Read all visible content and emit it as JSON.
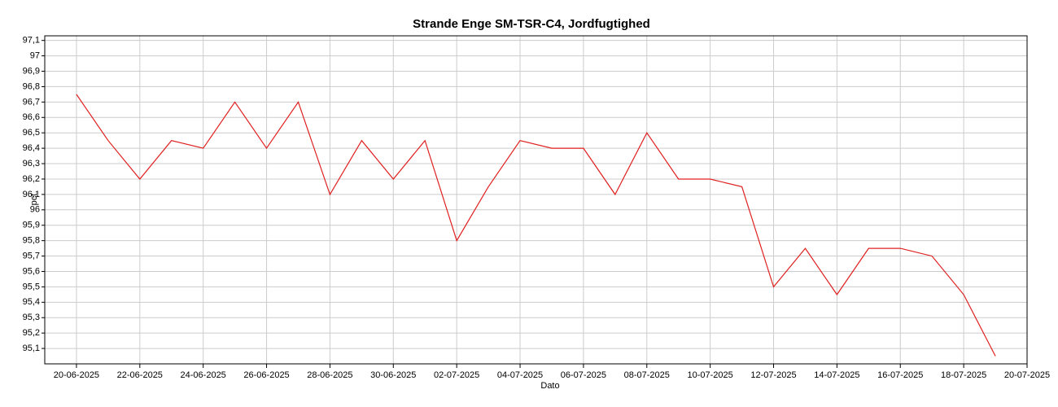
{
  "chart_data": {
    "type": "line",
    "title": "Strande Enge SM-TSR-C4, Jordfugtighed",
    "x_label": "Dato",
    "y_label": "pct",
    "x": [
      "2025-06-20",
      "2025-06-21",
      "2025-06-22",
      "2025-06-23",
      "2025-06-24",
      "2025-06-25",
      "2025-06-26",
      "2025-06-27",
      "2025-06-28",
      "2025-06-29",
      "2025-06-30",
      "2025-07-01",
      "2025-07-02",
      "2025-07-03",
      "2025-07-04",
      "2025-07-05",
      "2025-07-06",
      "2025-07-07",
      "2025-07-08",
      "2025-07-09",
      "2025-07-10",
      "2025-07-11",
      "2025-07-12",
      "2025-07-13",
      "2025-07-14",
      "2025-07-15",
      "2025-07-16",
      "2025-07-17",
      "2025-07-18",
      "2025-07-19"
    ],
    "series": [
      {
        "name": "Jordfugtighed",
        "color": "#e02020",
        "values": [
          96.75,
          96.45,
          96.2,
          96.45,
          96.4,
          96.7,
          96.4,
          96.7,
          96.1,
          96.45,
          96.2,
          96.45,
          95.8,
          96.15,
          96.45,
          96.4,
          96.4,
          96.1,
          96.5,
          96.2,
          96.2,
          96.15,
          95.5,
          95.75,
          95.45,
          95.75,
          95.75,
          95.7,
          95.45,
          95.05
        ]
      }
    ],
    "xlim": [
      "2025-06-19",
      "2025-07-20"
    ],
    "xticks": [
      {
        "value": "2025-06-20",
        "label": "20-06-2025"
      },
      {
        "value": "2025-06-22",
        "label": "22-06-2025"
      },
      {
        "value": "2025-06-24",
        "label": "24-06-2025"
      },
      {
        "value": "2025-06-26",
        "label": "26-06-2025"
      },
      {
        "value": "2025-06-28",
        "label": "28-06-2025"
      },
      {
        "value": "2025-06-30",
        "label": "30-06-2025"
      },
      {
        "value": "2025-07-02",
        "label": "02-07-2025"
      },
      {
        "value": "2025-07-04",
        "label": "04-07-2025"
      },
      {
        "value": "2025-07-06",
        "label": "06-07-2025"
      },
      {
        "value": "2025-07-08",
        "label": "08-07-2025"
      },
      {
        "value": "2025-07-10",
        "label": "10-07-2025"
      },
      {
        "value": "2025-07-12",
        "label": "12-07-2025"
      },
      {
        "value": "2025-07-14",
        "label": "14-07-2025"
      },
      {
        "value": "2025-07-16",
        "label": "16-07-2025"
      },
      {
        "value": "2025-07-18",
        "label": "18-07-2025"
      },
      {
        "value": "2025-07-20",
        "label": "20-07-2025"
      }
    ],
    "ylim": [
      95.0,
      97.13
    ],
    "yticks": [
      {
        "value": 95.1,
        "label": "95,1"
      },
      {
        "value": 95.2,
        "label": "95,2"
      },
      {
        "value": 95.3,
        "label": "95,3"
      },
      {
        "value": 95.4,
        "label": "95,4"
      },
      {
        "value": 95.5,
        "label": "95,5"
      },
      {
        "value": 95.6,
        "label": "95,6"
      },
      {
        "value": 95.7,
        "label": "95,7"
      },
      {
        "value": 95.8,
        "label": "95,8"
      },
      {
        "value": 95.9,
        "label": "95,9"
      },
      96,
      {
        "value": 96.1,
        "label": "96,1"
      },
      {
        "value": 96.2,
        "label": "96,2"
      },
      {
        "value": 96.3,
        "label": "96,3"
      },
      {
        "value": 96.4,
        "label": "96,4"
      },
      {
        "value": 96.5,
        "label": "96,5"
      },
      {
        "value": 96.6,
        "label": "96,6"
      },
      {
        "value": 96.7,
        "label": "96,7"
      },
      {
        "value": 96.8,
        "label": "96,8"
      },
      {
        "value": 96.9,
        "label": "96,9"
      },
      97,
      {
        "value": 97.1,
        "label": "97,1"
      }
    ],
    "grid": true
  }
}
